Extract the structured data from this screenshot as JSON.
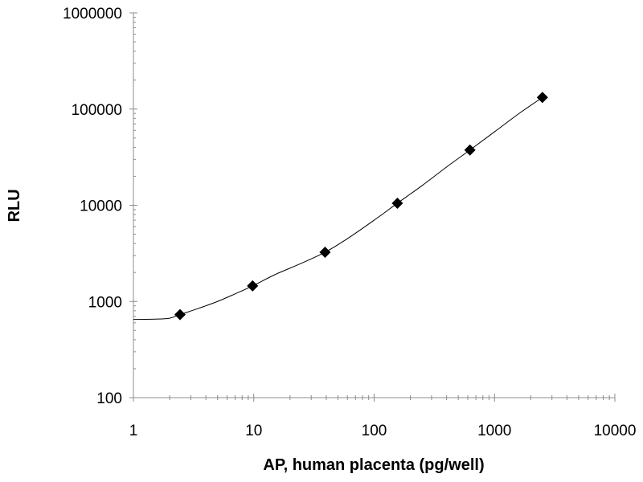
{
  "chart_data": {
    "type": "scatter",
    "title": "",
    "xlabel": "AP, human placenta (pg/well)",
    "ylabel": "RLU",
    "x_scale": "log",
    "y_scale": "log",
    "xlim": [
      1,
      10000
    ],
    "ylim": [
      100,
      1000000
    ],
    "x_ticks": [
      "1",
      "10",
      "100",
      "1000",
      "10000"
    ],
    "y_ticks": [
      "100",
      "1000",
      "10000",
      "100000",
      "1000000"
    ],
    "grid": false,
    "legend": "none",
    "series": [
      {
        "marker": "diamond",
        "color": "#000000",
        "x": [
          2.44,
          9.77,
          39.1,
          156,
          625,
          2500
        ],
        "y": [
          730,
          1450,
          3250,
          10500,
          37500,
          132000
        ]
      }
    ],
    "fit_curve": {
      "color": "#000000",
      "x": [
        1,
        1.5,
        2.0,
        2.44,
        3.5,
        5,
        7,
        9.77,
        15,
        25,
        39.1,
        60,
        100,
        156,
        250,
        400,
        625,
        1000,
        1600,
        2500
      ],
      "y": [
        650,
        655,
        670,
        730,
        850,
        1000,
        1200,
        1450,
        1900,
        2500,
        3250,
        4500,
        7000,
        10500,
        16000,
        25000,
        37500,
        58000,
        90000,
        132000
      ]
    }
  }
}
